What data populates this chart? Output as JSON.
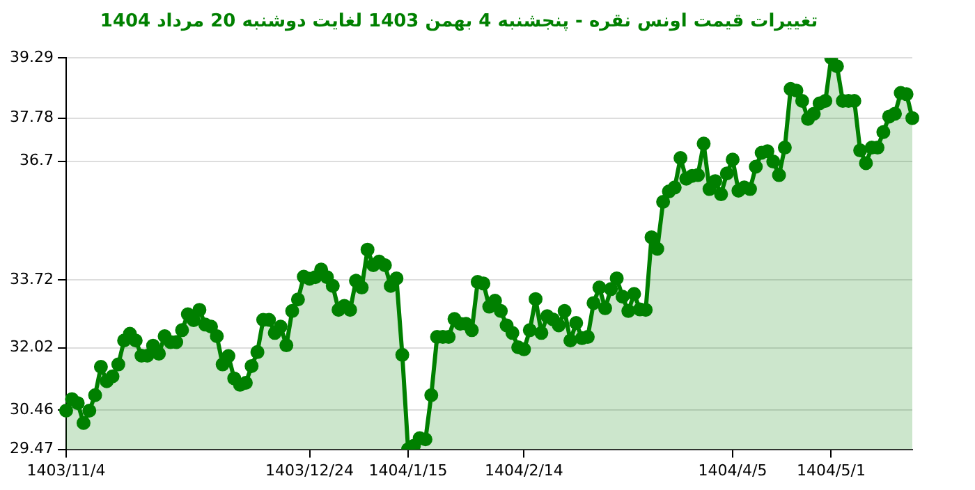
{
  "chart_data": {
    "type": "area",
    "title": "تغییرات قیمت اونس نقره - پنجشنبه 4 بهمن 1403 لغایت دوشنبه 20 مرداد 1404",
    "categories": [
      "1403/11/4",
      null,
      null,
      null,
      null,
      null,
      null,
      null,
      null,
      null,
      null,
      null,
      null,
      null,
      null,
      null,
      null,
      null,
      null,
      null,
      null,
      null,
      null,
      null,
      null,
      null,
      null,
      null,
      null,
      null,
      null,
      null,
      null,
      null,
      null,
      null,
      null,
      null,
      null,
      null,
      null,
      null,
      "1403/12/24",
      null,
      null,
      null,
      null,
      null,
      null,
      null,
      null,
      null,
      null,
      null,
      null,
      null,
      null,
      null,
      null,
      "1404/1/15",
      null,
      null,
      null,
      null,
      null,
      null,
      null,
      null,
      null,
      null,
      null,
      null,
      null,
      null,
      null,
      null,
      null,
      null,
      null,
      "1404/2/14",
      null,
      null,
      null,
      null,
      null,
      null,
      null,
      null,
      null,
      null,
      null,
      null,
      null,
      null,
      null,
      null,
      null,
      null,
      null,
      null,
      null,
      null,
      null,
      null,
      null,
      null,
      null,
      null,
      null,
      null,
      null,
      null,
      null,
      null,
      null,
      "1404/4/5",
      null,
      null,
      null,
      null,
      null,
      null,
      null,
      null,
      null,
      null,
      null,
      null,
      null,
      null,
      null,
      null,
      "1404/5/1",
      null,
      null,
      null,
      null,
      null,
      null,
      null,
      null,
      null,
      null,
      null,
      null,
      null,
      null
    ],
    "series": [
      {
        "color": "#008000",
        "values": [
          30.44,
          30.73,
          30.63,
          30.13,
          30.44,
          30.83,
          31.54,
          31.18,
          31.3,
          31.6,
          32.2,
          32.37,
          32.2,
          31.82,
          31.82,
          32.07,
          31.87,
          32.31,
          32.16,
          32.16,
          32.46,
          32.86,
          32.71,
          32.97,
          32.6,
          32.55,
          32.31,
          31.6,
          31.81,
          31.25,
          31.09,
          31.14,
          31.56,
          31.91,
          32.72,
          32.72,
          32.39,
          32.55,
          32.08,
          32.94,
          33.23,
          33.8,
          33.75,
          33.79,
          33.98,
          33.79,
          33.57,
          32.97,
          33.07,
          32.97,
          33.7,
          33.53,
          34.48,
          34.09,
          34.18,
          34.09,
          33.57,
          33.76,
          31.84,
          29.47,
          29.56,
          29.75,
          29.72,
          30.83,
          32.29,
          32.29,
          32.29,
          32.74,
          32.62,
          32.62,
          32.46,
          33.67,
          33.63,
          33.05,
          33.2,
          32.94,
          32.58,
          32.39,
          32.03,
          31.98,
          32.46,
          33.24,
          32.39,
          32.81,
          32.73,
          32.58,
          32.94,
          32.2,
          32.64,
          32.26,
          32.29,
          33.14,
          33.53,
          33.01,
          33.49,
          33.76,
          33.3,
          32.94,
          33.37,
          32.98,
          32.97,
          34.79,
          34.5,
          35.68,
          35.94,
          36.04,
          36.78,
          36.26,
          36.33,
          36.35,
          37.14,
          36.0,
          36.2,
          35.87,
          36.39,
          36.74,
          35.96,
          36.04,
          36.0,
          36.56,
          36.91,
          36.95,
          36.69,
          36.35,
          37.04,
          38.51,
          38.47,
          38.21,
          37.76,
          37.89,
          38.15,
          38.21,
          39.29,
          39.08,
          38.21,
          38.21,
          38.21,
          36.97,
          36.65,
          37.04,
          37.04,
          37.43,
          37.82,
          37.89,
          38.41,
          38.38,
          37.78
        ]
      }
    ],
    "ylim": [
      29.47,
      39.29
    ],
    "yticks": [
      29.47,
      30.46,
      32.02,
      33.72,
      36.7,
      37.78,
      39.29
    ],
    "grid": "y",
    "legend": false,
    "marker": "circle",
    "line_style": "solid"
  }
}
